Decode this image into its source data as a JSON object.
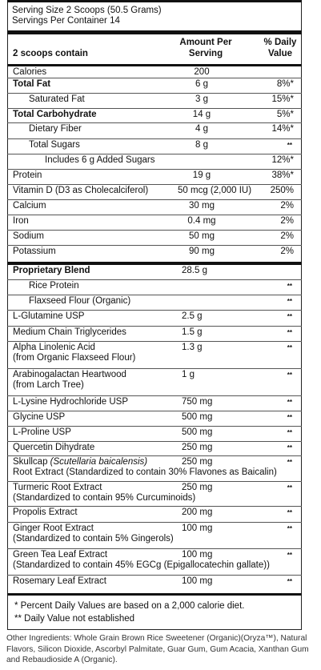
{
  "serving": {
    "size": "Serving Size 2 Scoops (50.5 Grams)",
    "per_container": "Servings Per Container  14"
  },
  "header": {
    "col1": "2 scoops contain",
    "col2_line1": "Amount Per",
    "col2_line2": "Serving",
    "col3_line1": "% Daily",
    "col3_line2": "Value"
  },
  "rows": [
    {
      "name": "Calories",
      "amount": "200",
      "dv": ""
    },
    {
      "name": "Total Fat",
      "amount": "6 g",
      "dv": "8%*"
    },
    {
      "name": "Saturated Fat",
      "amount": "3 g",
      "dv": "15%*"
    },
    {
      "name": "Total Carbohydrate",
      "amount": "14 g",
      "dv": "5%*"
    },
    {
      "name": "Dietary Fiber",
      "amount": "4 g",
      "dv": "14%*"
    },
    {
      "name": "Total Sugars",
      "amount": "8 g",
      "dv": "**"
    },
    {
      "name": "Includes 6 g Added Sugars",
      "amount": "",
      "dv": "12%*"
    },
    {
      "name": "Protein",
      "amount": "19 g",
      "dv": "38%*"
    },
    {
      "name": "Vitamin D (D3 as Cholecalciferol)",
      "amount": "50 mcg (2,000 IU)",
      "dv": "250%"
    },
    {
      "name": "Calcium",
      "amount": "30 mg",
      "dv": "2%"
    },
    {
      "name": "Iron",
      "amount": "0.4 mg",
      "dv": "2%"
    },
    {
      "name": "Sodium",
      "amount": "50 mg",
      "dv": "2%"
    },
    {
      "name": "Potassium",
      "amount": "90 mg",
      "dv": "2%"
    }
  ],
  "blend": [
    {
      "name": "Proprietary Blend",
      "amount": "28.5 g",
      "dv": ""
    },
    {
      "name": "Rice Protein",
      "amount": "",
      "dv": "**"
    },
    {
      "name": "Flaxseed Flour (Organic)",
      "amount": "",
      "dv": "**"
    },
    {
      "name": "L-Glutamine USP",
      "amount": "2.5 g",
      "dv": "**"
    },
    {
      "name": "Medium Chain Triglycerides",
      "amount": "1.5 g",
      "dv": "**"
    },
    {
      "name": "Alpha Linolenic Acid",
      "name2": "(from Organic Flaxseed Flour)",
      "amount": "1.3 g",
      "dv": "**"
    },
    {
      "name": "Arabinogalactan Heartwood",
      "name2": "(from Larch Tree)",
      "amount": "1 g",
      "dv": "**"
    },
    {
      "name": "L-Lysine Hydrochloride USP",
      "amount": "750 mg",
      "dv": "**"
    },
    {
      "name": "Glycine USP",
      "amount": "500 mg",
      "dv": "**"
    },
    {
      "name": "L-Proline USP",
      "amount": "500 mg",
      "dv": "**"
    },
    {
      "name": "Quercetin Dihydrate",
      "amount": "250 mg",
      "dv": "**"
    },
    {
      "name": "Skullcap",
      "name_italic": "(Scutellaria baicalensis)",
      "name2": "Root Extract (Standardized to contain 30% Flavones as Baicalin)",
      "amount": "250 mg",
      "dv": "**"
    },
    {
      "name": "Turmeric Root Extract",
      "name2": "(Standardized to contain 95% Curcuminoids)",
      "amount": "250 mg",
      "dv": "**"
    },
    {
      "name": "Propolis Extract",
      "amount": "200 mg",
      "dv": "**"
    },
    {
      "name": "Ginger Root Extract",
      "name2": "(Standardized to contain 5% Gingerols)",
      "amount": "100 mg",
      "dv": "**"
    },
    {
      "name": "Green Tea Leaf Extract",
      "name2": "(Standardized to contain 45% EGCg (Epigallocatechin gallate))",
      "amount": "100 mg",
      "dv": "**"
    },
    {
      "name": "Rosemary Leaf Extract",
      "amount": "100 mg",
      "dv": "**"
    }
  ],
  "footnotes": {
    "f1": "* Percent Daily Values are based on a 2,000 calorie diet.",
    "f2": "** Daily Value not established"
  },
  "other_ingredients": "Other Ingredients: Whole Grain Brown Rice Sweetener (Organic)(Oryza™), Natural Flavors, Silicon Dioxide, Ascorbyl Palmitate, Guar Gum, Gum Acacia, Xanthan Gum and Rebaudioside A (Organic)."
}
